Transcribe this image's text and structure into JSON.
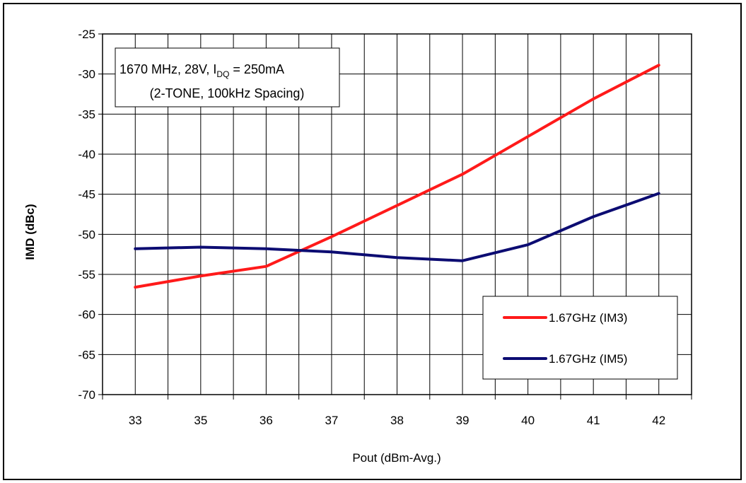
{
  "chart_data": {
    "type": "line",
    "categories": [
      "33",
      "35",
      "36",
      "37",
      "38",
      "39",
      "40",
      "41",
      "42"
    ],
    "series": [
      {
        "name": "1.67GHz (IM3)",
        "color": "#ff1a1a",
        "values": [
          -56.6,
          -55.2,
          -54.0,
          -50.3,
          -46.4,
          -42.5,
          -37.8,
          -33.1,
          -28.9
        ]
      },
      {
        "name": "1.67GHz (IM5)",
        "color": "#0c0c72",
        "values": [
          -51.8,
          -51.6,
          -51.8,
          -52.2,
          -52.9,
          -53.3,
          -51.3,
          -47.8,
          -44.9
        ]
      }
    ],
    "xlabel": "Pout (dBm-Avg.)",
    "ylabel": "IMD (dBc)",
    "ylim": [
      -70,
      -25
    ],
    "yticks": [
      -25,
      -30,
      -35,
      -40,
      -45,
      -50,
      -55,
      -60,
      -65,
      -70
    ],
    "grid": true,
    "legend_position": "bottom-right",
    "annotation": {
      "line1_prefix": "1670 MHz, 28V, I",
      "line1_subscript": "DQ",
      "line1_suffix": " = 250mA",
      "line2": "(2-TONE, 100kHz Spacing)"
    }
  }
}
